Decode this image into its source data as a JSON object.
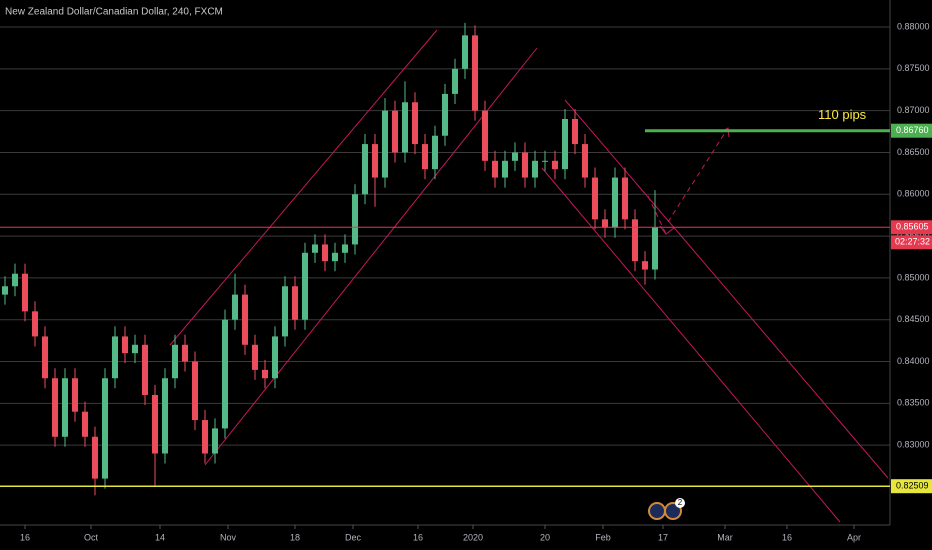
{
  "chart_data": {
    "type": "candlestick",
    "title": "New Zealand Dollar/Canadian Dollar, 240, FXCM",
    "x": [
      0,
      1,
      2,
      3,
      4,
      5,
      6,
      7,
      8,
      9,
      10,
      11,
      12,
      13,
      14,
      15,
      16,
      17,
      18,
      19,
      20,
      21,
      22,
      23,
      24,
      25,
      26,
      27,
      28,
      29,
      30,
      31,
      32,
      33,
      34,
      35,
      36,
      37,
      38,
      39,
      40,
      41,
      42,
      43,
      44,
      45,
      46,
      47,
      48,
      49,
      50,
      51,
      52,
      53,
      54,
      55,
      56,
      57,
      58,
      59,
      60,
      61,
      62,
      63,
      64,
      65
    ],
    "open": [
      0.848,
      0.849,
      0.8505,
      0.846,
      0.843,
      0.838,
      0.831,
      0.838,
      0.834,
      0.831,
      0.826,
      0.838,
      0.843,
      0.841,
      0.842,
      0.836,
      0.829,
      0.838,
      0.842,
      0.84,
      0.833,
      0.829,
      0.832,
      0.845,
      0.848,
      0.842,
      0.839,
      0.838,
      0.843,
      0.849,
      0.845,
      0.853,
      0.854,
      0.852,
      0.853,
      0.854,
      0.86,
      0.866,
      0.862,
      0.87,
      0.865,
      0.871,
      0.866,
      0.863,
      0.867,
      0.872,
      0.875,
      0.879,
      0.87,
      0.864,
      0.862,
      0.864,
      0.865,
      0.862,
      0.864,
      0.864,
      0.863,
      0.869,
      0.866,
      0.862,
      0.857,
      0.856,
      0.862,
      0.857,
      0.852,
      0.851
    ],
    "high": [
      0.8502,
      0.8517,
      0.8517,
      0.8472,
      0.8442,
      0.8392,
      0.8392,
      0.8392,
      0.8352,
      0.8322,
      0.8392,
      0.8442,
      0.8442,
      0.8432,
      0.8432,
      0.8372,
      0.8392,
      0.8432,
      0.8432,
      0.8412,
      0.8342,
      0.8332,
      0.8462,
      0.8505,
      0.8492,
      0.8432,
      0.8402,
      0.8442,
      0.8502,
      0.8502,
      0.8542,
      0.8552,
      0.8552,
      0.8542,
      0.8552,
      0.8612,
      0.8672,
      0.8672,
      0.8715,
      0.8712,
      0.8735,
      0.8722,
      0.8672,
      0.8682,
      0.8732,
      0.8762,
      0.8805,
      0.8802,
      0.8712,
      0.8652,
      0.8652,
      0.8662,
      0.8662,
      0.8652,
      0.8652,
      0.8652,
      0.8702,
      0.8702,
      0.8672,
      0.8632,
      0.8582,
      0.8632,
      0.8632,
      0.8582,
      0.8532,
      0.8605
    ],
    "low": [
      0.8468,
      0.8478,
      0.8448,
      0.8418,
      0.8368,
      0.8298,
      0.8298,
      0.8328,
      0.8298,
      0.824,
      0.8248,
      0.8368,
      0.8398,
      0.8398,
      0.8348,
      0.825,
      0.8278,
      0.8368,
      0.8388,
      0.8318,
      0.8278,
      0.8278,
      0.8308,
      0.8438,
      0.8408,
      0.8378,
      0.8368,
      0.8368,
      0.8418,
      0.8438,
      0.8438,
      0.8518,
      0.8508,
      0.8508,
      0.8518,
      0.8528,
      0.8588,
      0.8585,
      0.8608,
      0.8638,
      0.8638,
      0.8648,
      0.8618,
      0.8618,
      0.8658,
      0.8708,
      0.8738,
      0.8688,
      0.8628,
      0.8608,
      0.8608,
      0.8628,
      0.8608,
      0.8608,
      0.8628,
      0.8618,
      0.8618,
      0.8648,
      0.8608,
      0.8558,
      0.8548,
      0.8548,
      0.8558,
      0.8508,
      0.8492,
      0.8498
    ],
    "close": [
      0.849,
      0.8505,
      0.846,
      0.843,
      0.838,
      0.831,
      0.838,
      0.834,
      0.831,
      0.826,
      0.838,
      0.843,
      0.841,
      0.842,
      0.836,
      0.829,
      0.838,
      0.842,
      0.84,
      0.833,
      0.829,
      0.832,
      0.845,
      0.848,
      0.842,
      0.839,
      0.838,
      0.843,
      0.849,
      0.845,
      0.853,
      0.854,
      0.852,
      0.853,
      0.854,
      0.86,
      0.866,
      0.862,
      0.87,
      0.865,
      0.871,
      0.866,
      0.863,
      0.867,
      0.872,
      0.875,
      0.879,
      0.87,
      0.864,
      0.862,
      0.864,
      0.865,
      0.862,
      0.864,
      0.864,
      0.863,
      0.869,
      0.866,
      0.862,
      0.857,
      0.856,
      0.862,
      0.857,
      0.852,
      0.851,
      0.85605
    ],
    "up_color": "#53b987",
    "down_color": "#eb4d5c",
    "xlim": [
      -0.5,
      88.5
    ],
    "xticks": [
      {
        "value": 2,
        "label": "16"
      },
      {
        "value": 8.6,
        "label": "Oct"
      },
      {
        "value": 15.5,
        "label": "14"
      },
      {
        "value": 22.3,
        "label": "Nov"
      },
      {
        "value": 29,
        "label": "18"
      },
      {
        "value": 34.8,
        "label": "Dec"
      },
      {
        "value": 41.3,
        "label": "16"
      },
      {
        "value": 46.8,
        "label": "2020"
      },
      {
        "value": 54,
        "label": "20"
      },
      {
        "value": 59.8,
        "label": "Feb"
      },
      {
        "value": 65.8,
        "label": "17"
      },
      {
        "value": 72,
        "label": "Mar"
      },
      {
        "value": 78.2,
        "label": "16"
      },
      {
        "value": 84.9,
        "label": "Apr"
      }
    ],
    "ylim": [
      0.82045,
      0.88323
    ],
    "yticks": [
      {
        "value": 0.83,
        "label": "0.83000"
      },
      {
        "value": 0.835,
        "label": "0.83500"
      },
      {
        "value": 0.84,
        "label": "0.84000"
      },
      {
        "value": 0.845,
        "label": "0.84500"
      },
      {
        "value": 0.85,
        "label": "0.85000"
      },
      {
        "value": 0.855,
        "label": "0.85500"
      },
      {
        "value": 0.86,
        "label": "0.86000"
      },
      {
        "value": 0.865,
        "label": "0.86500"
      },
      {
        "value": 0.87,
        "label": "0.87000"
      },
      {
        "value": 0.875,
        "label": "0.87500"
      },
      {
        "value": 0.88,
        "label": "0.88000"
      }
    ],
    "grid": true,
    "levels": [
      {
        "value": 0.82509,
        "label": "0.82509",
        "color": "#e6e63c"
      },
      {
        "value": 0.8676,
        "label": "0.86760",
        "color": "#4caf50"
      }
    ],
    "last_price": {
      "value": 0.85605,
      "label": "0.85605",
      "color": "#e53950"
    },
    "countdown": "02:27:32",
    "annotation": "110 pips",
    "event_badge": "2"
  }
}
